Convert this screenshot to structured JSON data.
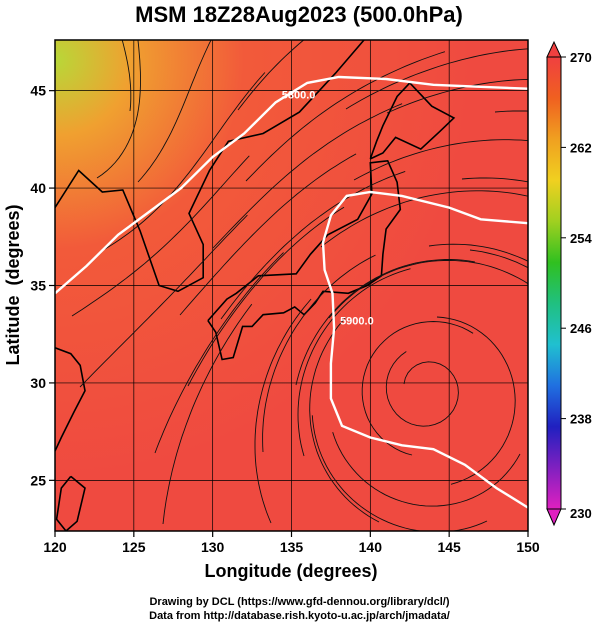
{
  "chart_data": {
    "type": "heatmap",
    "title": "MSM 18Z28Aug2023 (500.0hPa)",
    "xlabel": "Longitude (degrees)",
    "ylabel": "Latitude  (degrees)",
    "xlim": [
      120,
      150
    ],
    "ylim": [
      22.4,
      47.6
    ],
    "x_ticks": [
      120,
      125,
      130,
      135,
      140,
      145,
      150
    ],
    "y_ticks": [
      25,
      30,
      35,
      40,
      45
    ],
    "colorbar": {
      "ticks": [
        270,
        262,
        254,
        246,
        238,
        230
      ],
      "range": [
        230,
        270
      ],
      "colors": [
        "#e020c0",
        "#8020c0",
        "#2020c0",
        "#2070e0",
        "#20c0d0",
        "#20c080",
        "#30c020",
        "#a0d020",
        "#f0d020",
        "#f0a020",
        "#f06020",
        "#f04040"
      ]
    },
    "field_colors": {
      "nw_cold": "#b8d838",
      "mid": "#f0a030",
      "warm": "#f25a3a",
      "warmest": "#ef4a40"
    },
    "contours": [
      {
        "label": "5800.0",
        "points": [
          [
            120,
            34.6
          ],
          [
            122,
            36.0
          ],
          [
            124,
            37.6
          ],
          [
            126,
            38.8
          ],
          [
            128,
            40.0
          ],
          [
            130,
            41.6
          ],
          [
            132,
            42.8
          ],
          [
            134,
            44.4
          ],
          [
            136,
            45.4
          ],
          [
            138,
            45.7
          ],
          [
            141,
            45.6
          ],
          [
            144,
            45.3
          ],
          [
            147,
            45.2
          ],
          [
            150,
            45.1
          ]
        ]
      },
      {
        "label": "5900.0",
        "points": [
          [
            150,
            38.2
          ],
          [
            147,
            38.4
          ],
          [
            145,
            39.0
          ],
          [
            142,
            39.6
          ],
          [
            140,
            39.8
          ],
          [
            138.5,
            39.6
          ],
          [
            137.5,
            38.6
          ],
          [
            137.0,
            37.2
          ],
          [
            137.1,
            35.8
          ],
          [
            137.6,
            34.6
          ],
          [
            137.7,
            32.8
          ],
          [
            137.5,
            31.0
          ],
          [
            137.5,
            29.2
          ],
          [
            138.2,
            27.8
          ],
          [
            140,
            27.2
          ],
          [
            142,
            26.8
          ],
          [
            144,
            26.6
          ],
          [
            146,
            25.8
          ],
          [
            148,
            24.6
          ],
          [
            150,
            23.6
          ]
        ]
      }
    ]
  },
  "credits": {
    "line1": "Drawing by DCL (https://www.gfd-dennou.org/library/dcl/)",
    "line2": "Data from http://database.rish.kyoto-u.ac.jp/arch/jmadata/"
  }
}
